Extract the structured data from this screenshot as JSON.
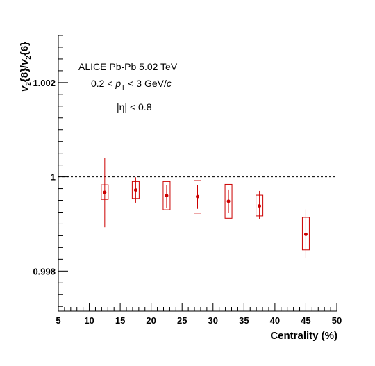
{
  "chart_data": {
    "type": "scatter",
    "xlabel": "Centrality (%)",
    "ylabel": {
      "v1": "v",
      "sub1": "2",
      "mid": "{8}/",
      "v2": "v",
      "sub2": "2",
      "end": "{6}"
    },
    "xlim": [
      5,
      50
    ],
    "ylim": [
      0.99715,
      1.003
    ],
    "x_ticks": [
      5,
      10,
      15,
      20,
      25,
      30,
      35,
      40,
      45,
      50
    ],
    "y_tick_labels": [
      {
        "value": 0.998,
        "label": "0.998"
      },
      {
        "value": 1.0,
        "label": "1"
      },
      {
        "value": 1.002,
        "label": "1.002"
      }
    ],
    "reference_line": {
      "y": 1.0,
      "style": "dashed"
    },
    "annotations": {
      "line1": "ALICE Pb-Pb 5.02 TeV",
      "line2_pre": "0.2 < ",
      "line2_p": "p",
      "line2_sub": "T",
      "line2_mid": " < 3 GeV/",
      "line2_c": "c",
      "line3": "|η| < 0.8"
    },
    "color": "#cc0000",
    "series": [
      {
        "points": [
          {
            "x": 12.5,
            "y": 0.99967,
            "stat": [
              0.99893,
              1.0004
            ],
            "sys": [
              0.99952,
              0.99983
            ]
          },
          {
            "x": 17.5,
            "y": 0.99972,
            "stat": [
              0.99945,
              0.99999
            ],
            "sys": [
              0.99954,
              0.9999
            ]
          },
          {
            "x": 22.5,
            "y": 0.9996,
            "stat": [
              0.99934,
              0.99982
            ],
            "sys": [
              0.9993,
              0.9999
            ]
          },
          {
            "x": 27.5,
            "y": 0.99958,
            "stat": [
              0.99932,
              0.99983
            ],
            "sys": [
              0.99923,
              0.99992
            ]
          },
          {
            "x": 32.5,
            "y": 0.99948,
            "stat": [
              0.99924,
              0.99973
            ],
            "sys": [
              0.99912,
              0.99984
            ]
          },
          {
            "x": 37.5,
            "y": 0.99938,
            "stat": [
              0.99911,
              0.9997
            ],
            "sys": [
              0.99917,
              0.99961
            ]
          },
          {
            "x": 45.0,
            "y": 0.99878,
            "stat": [
              0.99828,
              0.99931
            ],
            "sys": [
              0.99845,
              0.99914
            ]
          }
        ]
      }
    ]
  }
}
